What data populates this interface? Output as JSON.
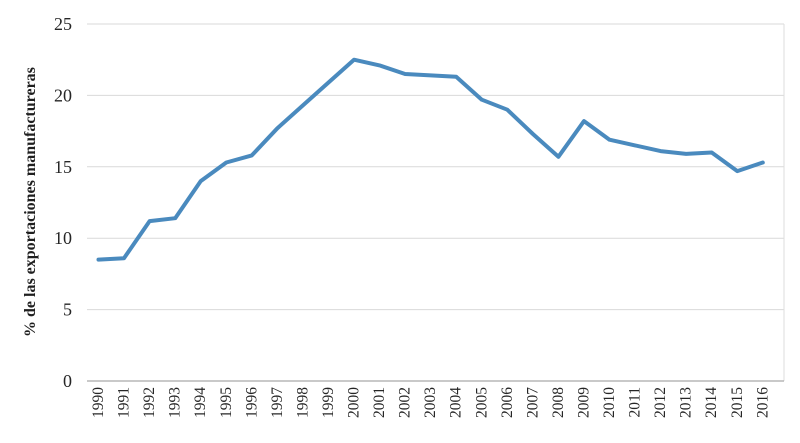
{
  "chart_data": {
    "type": "line",
    "title": "",
    "xlabel": "",
    "ylabel": "% de las exportaciones manufactureras",
    "categories": [
      "1990",
      "1991",
      "1992",
      "1993",
      "1994",
      "1995",
      "1996",
      "1997",
      "1998",
      "1999",
      "2000",
      "2001",
      "2002",
      "2003",
      "2004",
      "2005",
      "2006",
      "2007",
      "2008",
      "2009",
      "2010",
      "2011",
      "2012",
      "2013",
      "2014",
      "2015",
      "2016"
    ],
    "series": [
      {
        "name": "% de las exportaciones manufactureras",
        "values": [
          8.5,
          8.6,
          11.2,
          11.4,
          14.0,
          15.3,
          15.8,
          17.7,
          19.3,
          20.9,
          22.5,
          22.1,
          21.5,
          21.4,
          21.3,
          19.7,
          19.0,
          17.3,
          15.7,
          18.2,
          16.9,
          16.5,
          16.1,
          15.9,
          16.0,
          14.7,
          15.3
        ]
      }
    ],
    "ylim": [
      0,
      25
    ],
    "yticks": [
      0,
      5,
      10,
      15,
      20,
      25
    ],
    "grid": true,
    "legend_position": "none",
    "x_labels_rotated_degrees": 90
  },
  "colors": {
    "line": "#4a8abe",
    "gridline": "#d9d9d9",
    "axis_line": "#a9a9a9",
    "right_border": "#dedede",
    "text": "#262626",
    "background": "#ffffff"
  }
}
